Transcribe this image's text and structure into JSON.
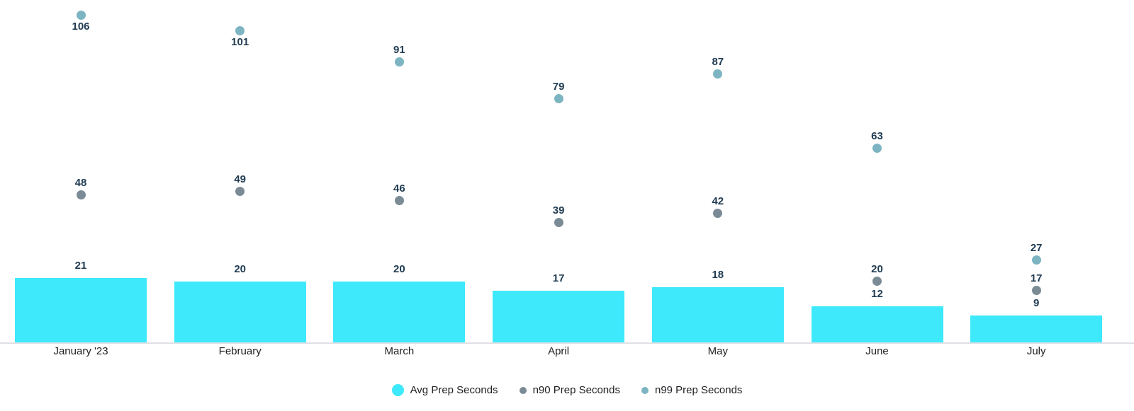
{
  "chart_data": {
    "type": "bar",
    "title": "",
    "categories": [
      "January '23",
      "February",
      "March",
      "April",
      "May",
      "June",
      "July"
    ],
    "series": [
      {
        "name": "Avg Prep Seconds",
        "type": "bar",
        "color": "#3DE9FB",
        "values": [
          21,
          20,
          20,
          17,
          18,
          12,
          9
        ]
      },
      {
        "name": "n90 Prep Seconds",
        "type": "scatter",
        "color": "#7A8B96",
        "values": [
          48,
          49,
          46,
          39,
          42,
          20,
          17
        ]
      },
      {
        "name": "n99 Prep Seconds",
        "type": "scatter",
        "color": "#7CB5C1",
        "values": [
          106,
          101,
          91,
          79,
          87,
          63,
          27
        ]
      }
    ],
    "xlabel": "",
    "ylabel": "",
    "ylim": [
      0,
      111
    ],
    "grid": false,
    "y_axis_visible": false,
    "value_labels": true,
    "legend_position": "bottom",
    "label_color": "#1F3B52",
    "axis_text_color": "#202124",
    "axis_line_color": "#DFE1E6",
    "background": "#FFFFFF",
    "layout_hints": {
      "n99_label_below": [
        true,
        true,
        false,
        false,
        false,
        false,
        false
      ]
    }
  }
}
